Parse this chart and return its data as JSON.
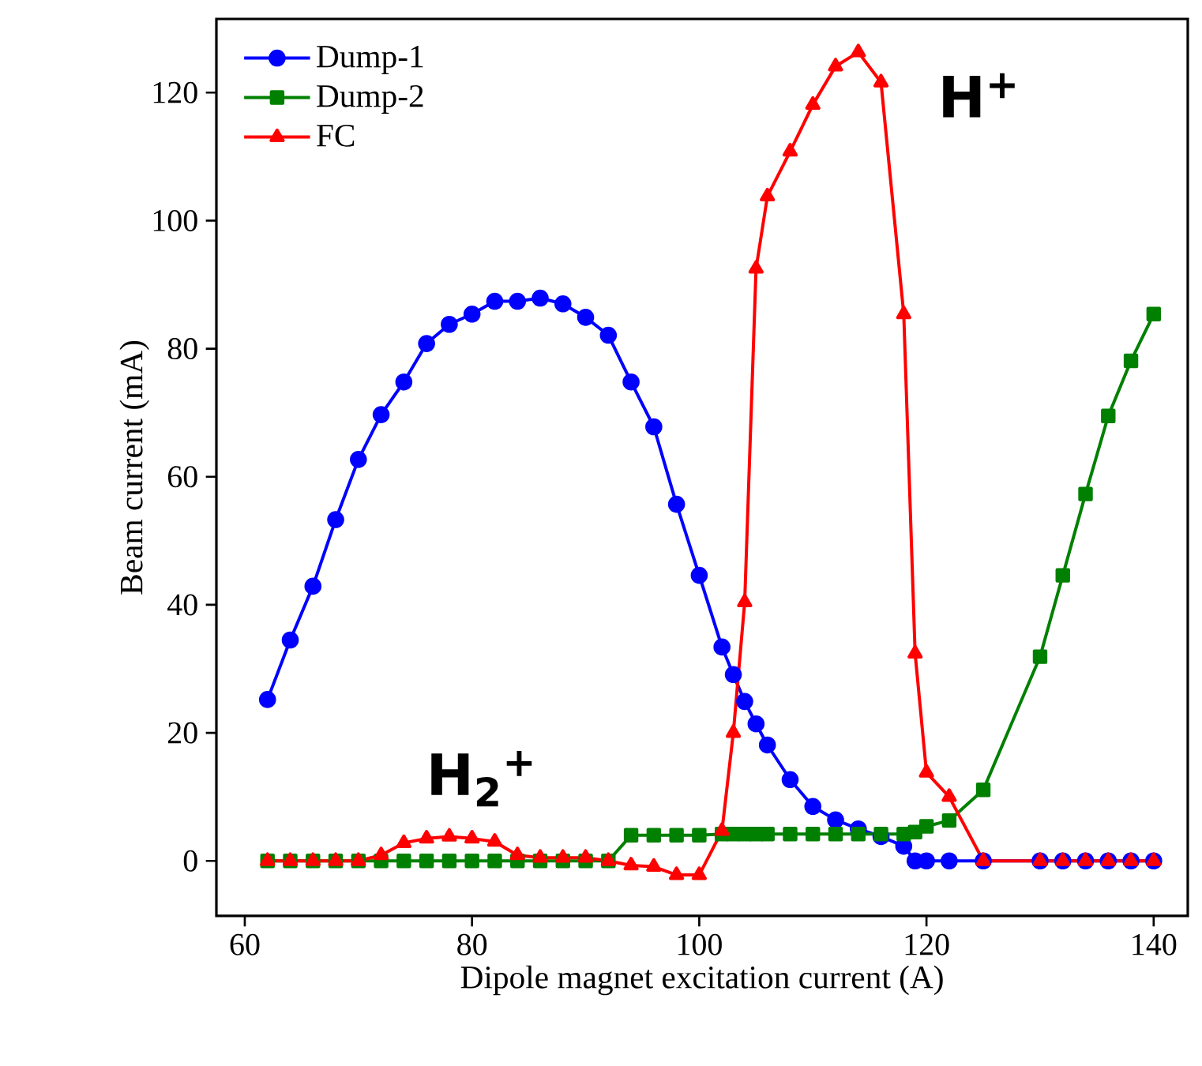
{
  "chart_data": {
    "type": "line",
    "xlabel": "Dipole magnet excitation current (A)",
    "ylabel": "Beam current (mA)",
    "xlim": [
      57.5,
      143
    ],
    "ylim": [
      -8.6,
      131.5
    ],
    "xticks": [
      60,
      80,
      100,
      120,
      140
    ],
    "yticks": [
      0,
      20,
      40,
      60,
      80,
      100,
      120
    ],
    "legend": "top left",
    "grid": false,
    "annotations": [
      "H$_{2}$$^{+}$",
      "H$^{+}$"
    ],
    "series": [
      {
        "name": "Dump-1",
        "color": "#0000ff",
        "marker": "circle",
        "x": [
          62,
          64,
          66,
          68,
          70,
          72,
          74,
          76,
          78,
          80,
          82,
          84,
          86,
          88,
          90,
          92,
          94,
          96,
          98,
          100,
          102,
          103,
          104,
          105,
          106,
          108,
          110,
          112,
          114,
          116,
          118,
          119,
          120,
          122,
          125,
          130,
          132,
          134,
          136,
          138,
          140
        ],
        "values": [
          25.2,
          34.5,
          42.9,
          53.3,
          62.7,
          69.7,
          74.8,
          80.8,
          83.8,
          85.4,
          87.4,
          87.4,
          87.9,
          87.0,
          84.9,
          82.1,
          74.8,
          67.8,
          55.7,
          44.6,
          33.4,
          29.1,
          24.9,
          21.4,
          18.1,
          12.7,
          8.5,
          6.4,
          5.0,
          3.8,
          2.3,
          0,
          0,
          0,
          0,
          0,
          0,
          0,
          0,
          0,
          0
        ]
      },
      {
        "name": "Dump-2",
        "color": "#008000",
        "marker": "square",
        "x": [
          62,
          64,
          66,
          68,
          70,
          72,
          74,
          76,
          78,
          80,
          82,
          84,
          86,
          88,
          90,
          92,
          94,
          96,
          98,
          100,
          102,
          103,
          104,
          105,
          106,
          108,
          110,
          112,
          114,
          116,
          118,
          119,
          120,
          122,
          125,
          130,
          132,
          134,
          136,
          138,
          140
        ],
        "values": [
          0,
          0,
          0,
          0,
          0,
          0,
          0,
          0,
          0,
          0,
          0,
          0,
          0,
          0,
          0,
          0,
          4.0,
          4.0,
          4.0,
          4.0,
          4.2,
          4.2,
          4.2,
          4.2,
          4.2,
          4.2,
          4.2,
          4.2,
          4.2,
          4.2,
          4.2,
          4.5,
          5.4,
          6.3,
          11.1,
          31.9,
          44.6,
          57.3,
          69.5,
          78.1,
          85.4
        ]
      },
      {
        "name": "FC",
        "color": "#ff0000",
        "marker": "triangle",
        "x": [
          62,
          64,
          66,
          68,
          70,
          72,
          74,
          76,
          78,
          80,
          82,
          84,
          86,
          88,
          90,
          92,
          94,
          96,
          98,
          100,
          102,
          103,
          104,
          105,
          106,
          108,
          110,
          112,
          114,
          116,
          118,
          119,
          120,
          122,
          125,
          130,
          132,
          134,
          136,
          138,
          140
        ],
        "values": [
          0,
          0,
          0,
          0,
          0,
          0.9,
          2.8,
          3.5,
          3.8,
          3.5,
          3.0,
          0.9,
          0.5,
          0.5,
          0.5,
          0,
          -0.7,
          -0.9,
          -2.2,
          -2.2,
          4.7,
          20,
          40.4,
          92.5,
          103.8,
          110.8,
          118.1,
          124.1,
          126.3,
          121.6,
          85.4,
          32.4,
          13.8,
          10.0,
          0,
          0,
          0,
          0,
          0,
          0,
          0
        ]
      }
    ]
  }
}
